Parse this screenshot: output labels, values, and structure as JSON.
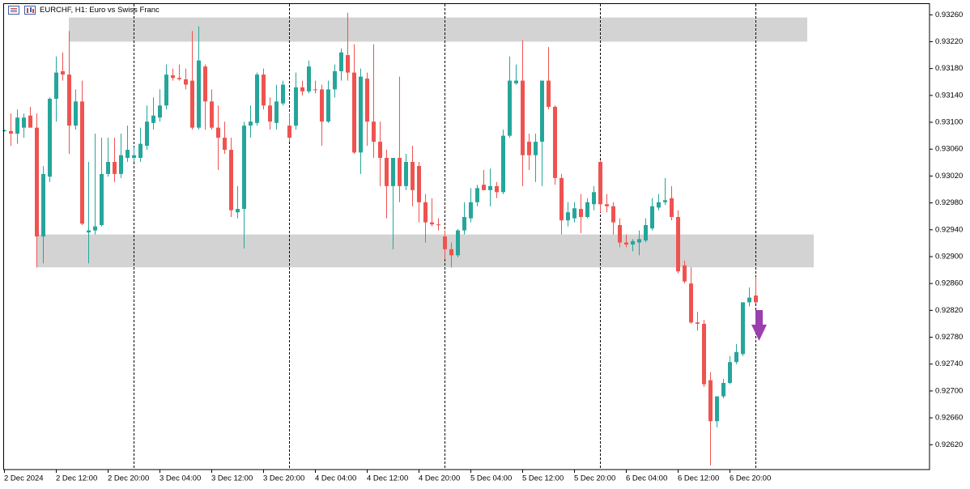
{
  "chart_data": {
    "type": "candlestick",
    "title": "EURCHF, H1:  Euro vs Swiss Franc",
    "categories": [
      "2 Dec 2024",
      null,
      null,
      null,
      null,
      null,
      null,
      null,
      "2 Dec 12:00",
      null,
      null,
      null,
      null,
      null,
      null,
      null,
      "2 Dec 20:00",
      null,
      null,
      null,
      null,
      null,
      null,
      null,
      "3 Dec 04:00",
      null,
      null,
      null,
      null,
      null,
      null,
      null,
      "3 Dec 12:00",
      null,
      null,
      null,
      null,
      null,
      null,
      null,
      "3 Dec 20:00",
      null,
      null,
      null,
      null,
      null,
      null,
      null,
      "4 Dec 04:00",
      null,
      null,
      null,
      null,
      null,
      null,
      null,
      "4 Dec 12:00",
      null,
      null,
      null,
      null,
      null,
      null,
      null,
      "4 Dec 20:00",
      null,
      null,
      null,
      null,
      null,
      null,
      null,
      "5 Dec 04:00",
      null,
      null,
      null,
      null,
      null,
      null,
      null,
      "5 Dec 12:00",
      null,
      null,
      null,
      null,
      null,
      null,
      null,
      "5 Dec 20:00",
      null,
      null,
      null,
      null,
      null,
      null,
      null,
      "6 Dec 04:00",
      null,
      null,
      null,
      null,
      null,
      null,
      null,
      "6 Dec 12:00",
      null,
      null,
      null,
      null,
      null,
      null,
      null,
      "6 Dec 20:00",
      null,
      null,
      null,
      null
    ],
    "open": [
      0.93088,
      0.93087,
      0.93083,
      0.93092,
      0.9311,
      0.93092,
      0.9293,
      0.93019,
      0.93135,
      0.93176,
      0.93171,
      0.93095,
      0.93131,
      0.92936,
      0.92939,
      0.92947,
      0.93023,
      0.93041,
      0.93023,
      0.93047,
      0.93047,
      0.93047,
      0.93065,
      0.93099,
      0.93107,
      0.93125,
      0.9317,
      0.93166,
      0.93164,
      0.93162,
      0.93092,
      0.93183,
      0.93131,
      0.93092,
      0.93077,
      0.93059,
      0.92966,
      0.92971,
      0.93095,
      0.93099,
      0.93171,
      0.93125,
      0.93099,
      0.93128,
      0.93095,
      0.93095,
      0.93152,
      0.93146,
      0.93149,
      0.93149,
      0.93101,
      0.93149,
      0.93176,
      0.932,
      0.93174,
      0.93055,
      0.93165,
      0.93101,
      0.93071,
      0.93047,
      0.93005,
      0.93047,
      0.93005,
      0.93041,
      0.93035,
      0.92981,
      0.92951,
      0.92948,
      0.9293,
      0.92911,
      0.92902,
      0.92939,
      0.92957,
      0.92981,
      0.93007,
      0.92999,
      0.93005,
      0.92996,
      0.9308,
      0.93158,
      0.93162,
      0.93071,
      0.93051,
      0.93071,
      0.93162,
      0.93123,
      0.93017,
      0.92954,
      0.92957,
      0.92971,
      0.92959,
      0.92978,
      0.93041,
      0.92978,
      0.92975,
      0.92947,
      0.92921,
      0.92918,
      0.92921,
      0.92924,
      0.92942,
      0.92973,
      0.92981,
      0.92987,
      0.92959,
      0.92887,
      0.9286,
      0.92802,
      0.928,
      0.92716,
      0.92655,
      0.92692,
      0.92712,
      0.92743,
      0.92755,
      0.92832,
      0.92842
    ],
    "high": [
      0.93089,
      0.93113,
      0.93119,
      0.93113,
      0.93123,
      0.93113,
      0.93035,
      0.93137,
      0.93198,
      0.93204,
      0.93236,
      0.93149,
      0.93162,
      0.93041,
      0.93083,
      0.93077,
      0.93077,
      0.93077,
      0.93083,
      0.93095,
      0.93063,
      0.93092,
      0.93125,
      0.93137,
      0.93149,
      0.93186,
      0.9318,
      0.93186,
      0.9318,
      0.93236,
      0.93243,
      0.93186,
      0.93149,
      0.93125,
      0.93101,
      0.93077,
      0.93005,
      0.93101,
      0.93125,
      0.93174,
      0.9318,
      0.93137,
      0.93156,
      0.93162,
      0.93113,
      0.93174,
      0.93162,
      0.93192,
      0.93162,
      0.93156,
      0.93162,
      0.93186,
      0.9321,
      0.93263,
      0.93216,
      0.9318,
      0.93174,
      0.93216,
      0.93101,
      0.93059,
      0.93047,
      0.93168,
      0.93053,
      0.93065,
      0.93041,
      0.92993,
      0.92987,
      0.92957,
      0.92939,
      0.92921,
      0.92941,
      0.92981,
      0.93002,
      0.93007,
      0.93029,
      0.93031,
      0.93011,
      0.93089,
      0.93198,
      0.93186,
      0.93222,
      0.93083,
      0.93083,
      0.93162,
      0.93212,
      0.93125,
      0.93023,
      0.92981,
      0.92981,
      0.92993,
      0.92987,
      0.93005,
      0.93043,
      0.92993,
      0.92981,
      0.92957,
      0.92933,
      0.92926,
      0.92939,
      0.92957,
      0.92987,
      0.92993,
      0.93017,
      0.93005,
      0.92969,
      0.92894,
      0.92884,
      0.92818,
      0.92806,
      0.92728,
      0.92692,
      0.92718,
      0.92752,
      0.9277,
      0.92832,
      0.92854,
      0.9287
    ],
    "low": [
      0.93086,
      0.93065,
      0.93068,
      0.93077,
      0.93092,
      0.92884,
      0.9289,
      0.93011,
      0.93101,
      0.93162,
      0.93053,
      0.93089,
      0.92947,
      0.9289,
      0.92933,
      0.92945,
      0.93019,
      0.93011,
      0.93017,
      0.93041,
      0.93041,
      0.93041,
      0.93059,
      0.93089,
      0.93101,
      0.93119,
      0.93162,
      0.93162,
      0.93149,
      0.93089,
      0.93089,
      0.93089,
      0.93089,
      0.93029,
      0.93053,
      0.92959,
      0.92957,
      0.92912,
      0.93077,
      0.93095,
      0.93119,
      0.93089,
      0.93089,
      0.93125,
      0.93071,
      0.93089,
      0.9314,
      0.93143,
      0.93143,
      0.93065,
      0.93099,
      0.93137,
      0.93162,
      0.93162,
      0.93053,
      0.93023,
      0.93065,
      0.93047,
      0.93005,
      0.92957,
      0.92911,
      0.92981,
      0.92999,
      0.92975,
      0.92951,
      0.92921,
      0.92945,
      0.92939,
      0.92896,
      0.92884,
      0.92899,
      0.92933,
      0.92951,
      0.92975,
      0.92999,
      0.92975,
      0.92987,
      0.92993,
      0.93077,
      0.93156,
      0.93005,
      0.93029,
      0.93011,
      0.93005,
      0.93119,
      0.93007,
      0.92933,
      0.92945,
      0.92951,
      0.92935,
      0.92957,
      0.92969,
      0.92966,
      0.92966,
      0.92933,
      0.92914,
      0.92914,
      0.92908,
      0.92902,
      0.92921,
      0.92939,
      0.92969,
      0.92977,
      0.92954,
      0.92875,
      0.9286,
      0.928,
      0.9279,
      0.92706,
      0.92589,
      0.92646,
      0.92689,
      0.9271,
      0.9274,
      0.92752,
      0.92826,
      0.9283
    ],
    "close": [
      0.93088,
      0.93083,
      0.93107,
      0.93107,
      0.93092,
      0.9293,
      0.93023,
      0.93135,
      0.93174,
      0.93171,
      0.93095,
      0.93131,
      0.92949,
      0.92939,
      0.92945,
      0.93023,
      0.93041,
      0.93023,
      0.93051,
      0.93059,
      0.93051,
      0.93068,
      0.93101,
      0.9311,
      0.93125,
      0.93171,
      0.93166,
      0.93164,
      0.93156,
      0.93092,
      0.93192,
      0.93131,
      0.93092,
      0.93077,
      0.93059,
      0.92969,
      0.92971,
      0.93095,
      0.93101,
      0.93171,
      0.93125,
      0.93101,
      0.93131,
      0.93156,
      0.93077,
      0.93152,
      0.93146,
      0.93183,
      0.93148,
      0.93101,
      0.93149,
      0.93176,
      0.93204,
      0.93174,
      0.93055,
      0.93168,
      0.93101,
      0.93071,
      0.93047,
      0.93005,
      0.93047,
      0.93005,
      0.93041,
      0.92999,
      0.92981,
      0.92951,
      0.92948,
      0.92947,
      0.92911,
      0.92902,
      0.92939,
      0.92959,
      0.92981,
      0.93002,
      0.92999,
      0.93005,
      0.92996,
      0.9308,
      0.93162,
      0.93162,
      0.93051,
      0.93051,
      0.93071,
      0.93162,
      0.93123,
      0.93017,
      0.92954,
      0.92966,
      0.92972,
      0.92959,
      0.92981,
      0.92996,
      0.92978,
      0.92975,
      0.92951,
      0.92921,
      0.92918,
      0.92923,
      0.92926,
      0.92947,
      0.92975,
      0.92981,
      0.92984,
      0.92959,
      0.92878,
      0.92863,
      0.92802,
      0.928,
      0.9271,
      0.92655,
      0.92692,
      0.92712,
      0.92743,
      0.92758,
      0.92832,
      0.92839,
      0.92832
    ],
    "up_color": "#26a69a",
    "down_color": "#ef5350",
    "zones": [
      {
        "from": 0.9322,
        "to": 0.93256,
        "start": 10,
        "end": 124
      },
      {
        "from": 0.92884,
        "to": 0.92933,
        "start": 5,
        "end": 125
      }
    ],
    "zone_color": "#d3d3d3",
    "period_separators": true,
    "ylim": [
      0.92583,
      0.93276
    ],
    "yticks": [
      {
        "value": 0.9326,
        "label": "0.93260"
      },
      {
        "value": 0.9322,
        "label": "0.93220"
      },
      {
        "value": 0.9318,
        "label": "0.93180"
      },
      {
        "value": 0.9314,
        "label": "0.93140"
      },
      {
        "value": 0.931,
        "label": "0.93100"
      },
      {
        "value": 0.9306,
        "label": "0.93060"
      },
      {
        "value": 0.9302,
        "label": "0.93020"
      },
      {
        "value": 0.9298,
        "label": "0.92980"
      },
      {
        "value": 0.9294,
        "label": "0.92940"
      },
      {
        "value": 0.929,
        "label": "0.92900"
      },
      {
        "value": 0.9286,
        "label": "0.92860"
      },
      {
        "value": 0.9282,
        "label": "0.92820"
      },
      {
        "value": 0.9278,
        "label": "0.92780"
      },
      {
        "value": 0.9274,
        "label": "0.92740"
      },
      {
        "value": 0.927,
        "label": "0.92700"
      },
      {
        "value": 0.9266,
        "label": "0.92660"
      },
      {
        "value": 0.9262,
        "label": "0.92620"
      }
    ],
    "grid": false
  }
}
